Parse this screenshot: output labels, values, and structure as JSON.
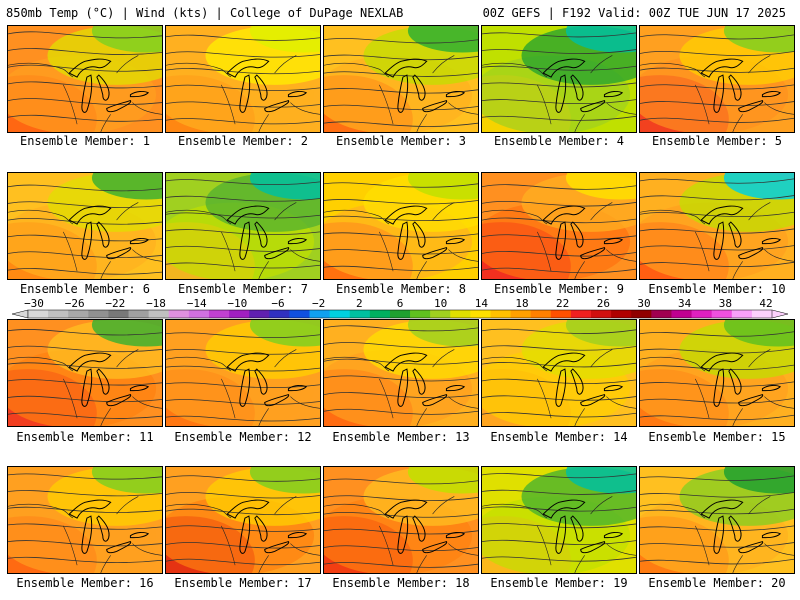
{
  "header": {
    "left": "850mb Temp (°C) | Wind (kts) | College of DuPage NEXLAB",
    "right": "00Z GEFS | F192 Valid: 00Z TUE JUN 17 2025"
  },
  "colorbar": {
    "labels": [
      "−30",
      "−26",
      "−22",
      "−18",
      "−14",
      "−10",
      "−6",
      "−2",
      "2",
      "6",
      "10",
      "14",
      "18",
      "22",
      "26",
      "30",
      "34",
      "38",
      "42"
    ],
    "colors": [
      "#d8d8d8",
      "#c0c0c0",
      "#a8a8a8",
      "#909090",
      "#787878",
      "#a0a0a0",
      "#c0c0c0",
      "#e090e0",
      "#d070e0",
      "#c040d0",
      "#a020c0",
      "#6020b0",
      "#3030c0",
      "#1050e0",
      "#10a0f0",
      "#00d0e0",
      "#00c0a0",
      "#00b060",
      "#20a030",
      "#60c020",
      "#a0d020",
      "#e0e000",
      "#ffe000",
      "#ffc000",
      "#ffa000",
      "#ff8000",
      "#ff5000",
      "#f02020",
      "#d01010",
      "#b00000",
      "#900000",
      "#a00050",
      "#c00090",
      "#e020c0",
      "#f050e0",
      "#f8a0f8",
      "#fcd0fc"
    ]
  },
  "panels": [
    {
      "label": "Ensemble Member: 1",
      "palette": [
        "#ff6010",
        "#ffa020",
        "#e0e000",
        "#80d020"
      ],
      "bg": "#ff9020"
    },
    {
      "label": "Ensemble Member: 2",
      "palette": [
        "#ff8010",
        "#ffb020",
        "#fff000",
        "#e0f000"
      ],
      "bg": "#ffb020"
    },
    {
      "label": "Ensemble Member: 3",
      "palette": [
        "#ff6010",
        "#ffb020",
        "#c0e000",
        "#30b030"
      ],
      "bg": "#ffc020"
    },
    {
      "label": "Ensemble Member: 4",
      "palette": [
        "#ffd000",
        "#a0d020",
        "#20a030",
        "#00c0a0"
      ],
      "bg": "#c0e000"
    },
    {
      "label": "Ensemble Member: 5",
      "palette": [
        "#f03020",
        "#ff9020",
        "#ffd000",
        "#80d020"
      ],
      "bg": "#ffa020"
    },
    {
      "label": "Ensemble Member: 6",
      "palette": [
        "#ff8010",
        "#ffb020",
        "#e0e000",
        "#40b030"
      ],
      "bg": "#ffc020"
    },
    {
      "label": "Ensemble Member: 7",
      "palette": [
        "#ffb020",
        "#c0e000",
        "#50b030",
        "#00c0a0"
      ],
      "bg": "#a0d020"
    },
    {
      "label": "Ensemble Member: 8",
      "palette": [
        "#ff6010",
        "#ffb020",
        "#ffe000",
        "#c0e000"
      ],
      "bg": "#ffd000"
    },
    {
      "label": "Ensemble Member: 9",
      "palette": [
        "#f02020",
        "#ff7010",
        "#ffb020",
        "#ffe000"
      ],
      "bg": "#ff9020"
    },
    {
      "label": "Ensemble Member: 10",
      "palette": [
        "#ff5010",
        "#ffa020",
        "#c0e000",
        "#00d0e0"
      ],
      "bg": "#ffb020"
    },
    {
      "label": "Ensemble Member: 11",
      "palette": [
        "#f03020",
        "#ff8010",
        "#ffc020",
        "#40b030"
      ],
      "bg": "#ff9020"
    },
    {
      "label": "Ensemble Member: 12",
      "palette": [
        "#ff7010",
        "#ffa020",
        "#ffd000",
        "#80d020"
      ],
      "bg": "#ffa020"
    },
    {
      "label": "Ensemble Member: 13",
      "palette": [
        "#ff6010",
        "#ffa020",
        "#ffe000",
        "#a0d020"
      ],
      "bg": "#ffb020"
    },
    {
      "label": "Ensemble Member: 14",
      "palette": [
        "#ffa020",
        "#ffd000",
        "#e0e000",
        "#a0d020"
      ],
      "bg": "#ffc020"
    },
    {
      "label": "Ensemble Member: 15",
      "palette": [
        "#ff7010",
        "#ffa020",
        "#c0e000",
        "#60c020"
      ],
      "bg": "#ffb020"
    },
    {
      "label": "Ensemble Member: 16",
      "palette": [
        "#ff6010",
        "#ffa020",
        "#ffd000",
        "#80d020"
      ],
      "bg": "#ffa020"
    },
    {
      "label": "Ensemble Member: 17",
      "palette": [
        "#e02010",
        "#ff8010",
        "#ffd000",
        "#80d020"
      ],
      "bg": "#ffa020"
    },
    {
      "label": "Ensemble Member: 18",
      "palette": [
        "#f03010",
        "#ff8010",
        "#ffc020",
        "#c0e000"
      ],
      "bg": "#ff9020"
    },
    {
      "label": "Ensemble Member: 19",
      "palette": [
        "#ffb020",
        "#c0e000",
        "#40b030",
        "#00c0a0"
      ],
      "bg": "#e0e000"
    },
    {
      "label": "Ensemble Member: 20",
      "palette": [
        "#ff7010",
        "#ffb020",
        "#80d020",
        "#20a030"
      ],
      "bg": "#ffc020"
    }
  ]
}
